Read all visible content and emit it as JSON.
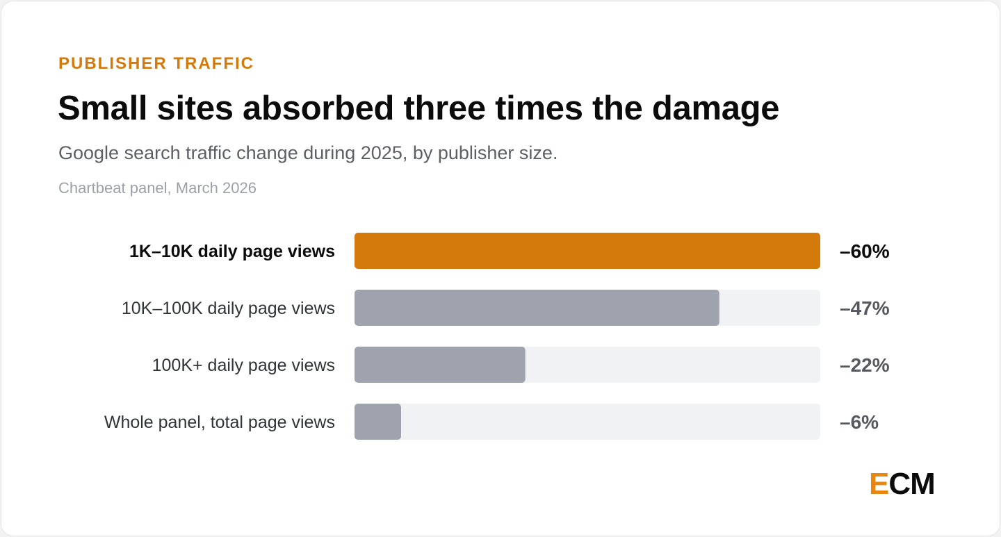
{
  "header": {
    "eyebrow": "PUBLISHER TRAFFIC",
    "title": "Small sites absorbed three times the damage",
    "subtitle": "Google search traffic change during 2025, by publisher size.",
    "source": "Chartbeat panel, March 2026"
  },
  "logo": {
    "first_letter": "E",
    "rest": "CM"
  },
  "colors": {
    "accent": "#d4790c",
    "neutral_bar": "#9ea3ad",
    "track": "#f1f2f4"
  },
  "chart_data": {
    "type": "bar",
    "orientation": "horizontal",
    "categories": [
      "1K–10K daily page views",
      "10K–100K daily page views",
      "100K+ daily page views",
      "Whole panel, total page views"
    ],
    "values": [
      -60,
      -47,
      -22,
      -6
    ],
    "value_labels": [
      "–60%",
      "–47%",
      "–22%",
      "–6%"
    ],
    "highlight_index": 0,
    "xlim": [
      0,
      60
    ],
    "grid": false
  }
}
